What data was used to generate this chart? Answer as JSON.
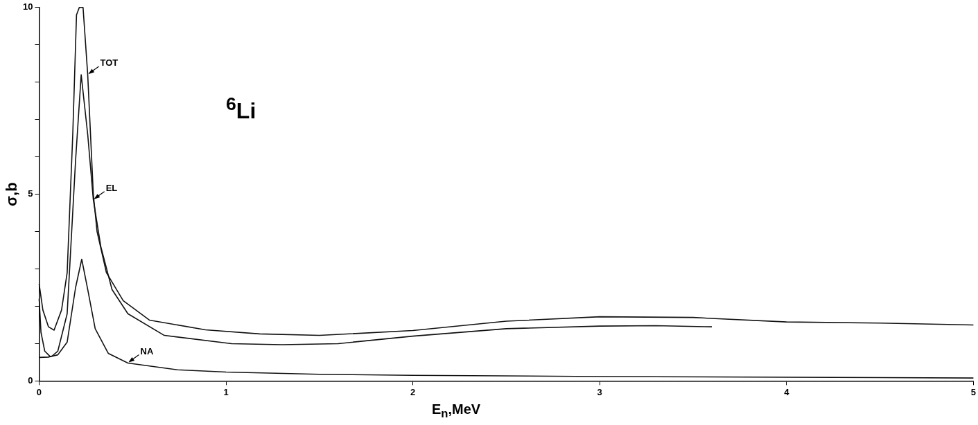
{
  "chart_data": {
    "type": "line",
    "xlabel": "E$_{n}$,MeV",
    "ylabel": "σ,b",
    "xlim": [
      0,
      5
    ],
    "xticks": [
      0,
      1,
      2,
      3,
      4,
      5
    ],
    "ylim": [
      0,
      10
    ],
    "yticks": [
      0,
      {
        "value": 1,
        "label": null
      },
      {
        "value": 2,
        "label": null
      },
      {
        "value": 3,
        "label": null
      },
      {
        "value": 4,
        "label": null
      },
      5,
      {
        "value": 6,
        "label": null
      },
      {
        "value": 7,
        "label": null
      },
      {
        "value": 8,
        "label": null
      },
      {
        "value": 9,
        "label": null
      },
      10
    ],
    "grid": false,
    "legend": false,
    "marker": "none",
    "line_style": "solid",
    "series": [
      {
        "color": "#111111",
        "x": [
          0,
          0.02,
          0.05,
          0.08,
          0.12,
          0.15,
          0.18,
          0.2,
          0.215,
          0.235,
          0.26,
          0.29,
          0.31,
          0.36,
          0.45,
          0.59,
          0.89,
          1.18,
          1.5,
          2,
          2.5,
          3,
          3.5,
          4,
          4.5,
          5
        ],
        "values": [
          2.6,
          1.9,
          1.45,
          1.36,
          1.9,
          2.9,
          6.6,
          9.8,
          10,
          10,
          8.2,
          5.0,
          4.0,
          2.9,
          2.15,
          1.63,
          1.37,
          1.26,
          1.22,
          1.35,
          1.6,
          1.72,
          1.7,
          1.58,
          1.55,
          1.5
        ]
      },
      {
        "color": "#111111",
        "x": [
          0,
          0.05,
          0.07,
          0.1,
          0.15,
          0.195,
          0.225,
          0.26,
          0.29,
          0.33,
          0.39,
          0.475,
          0.67,
          1.03,
          1.3,
          1.6,
          2,
          2.5,
          3,
          3.3,
          3.6
        ],
        "values": [
          0.63,
          0.64,
          0.67,
          0.8,
          1.8,
          5.9,
          8.2,
          6.6,
          4.85,
          3.6,
          2.45,
          1.8,
          1.22,
          1.0,
          0.97,
          1.0,
          1.2,
          1.4,
          1.47,
          1.48,
          1.45
        ]
      },
      {
        "color": "#111111",
        "x": [
          0,
          0.01,
          0.03,
          0.06,
          0.1,
          0.15,
          0.195,
          0.228,
          0.26,
          0.3,
          0.37,
          0.475,
          0.74,
          1,
          1.5,
          2,
          3,
          4,
          5
        ],
        "values": [
          2.2,
          1.3,
          0.8,
          0.65,
          0.7,
          1.04,
          2.5,
          3.26,
          2.45,
          1.4,
          0.74,
          0.48,
          0.3,
          0.24,
          0.18,
          0.15,
          0.12,
          0.1,
          0.08
        ]
      }
    ],
    "annotations": [
      {
        "text": "TOT",
        "x": 0.26,
        "y": 8.2
      },
      {
        "text": "EL",
        "x": 0.29,
        "y": 4.85
      },
      {
        "text": "NA",
        "x": 0.475,
        "y": 0.48
      },
      "$^{6}$Li"
    ]
  }
}
